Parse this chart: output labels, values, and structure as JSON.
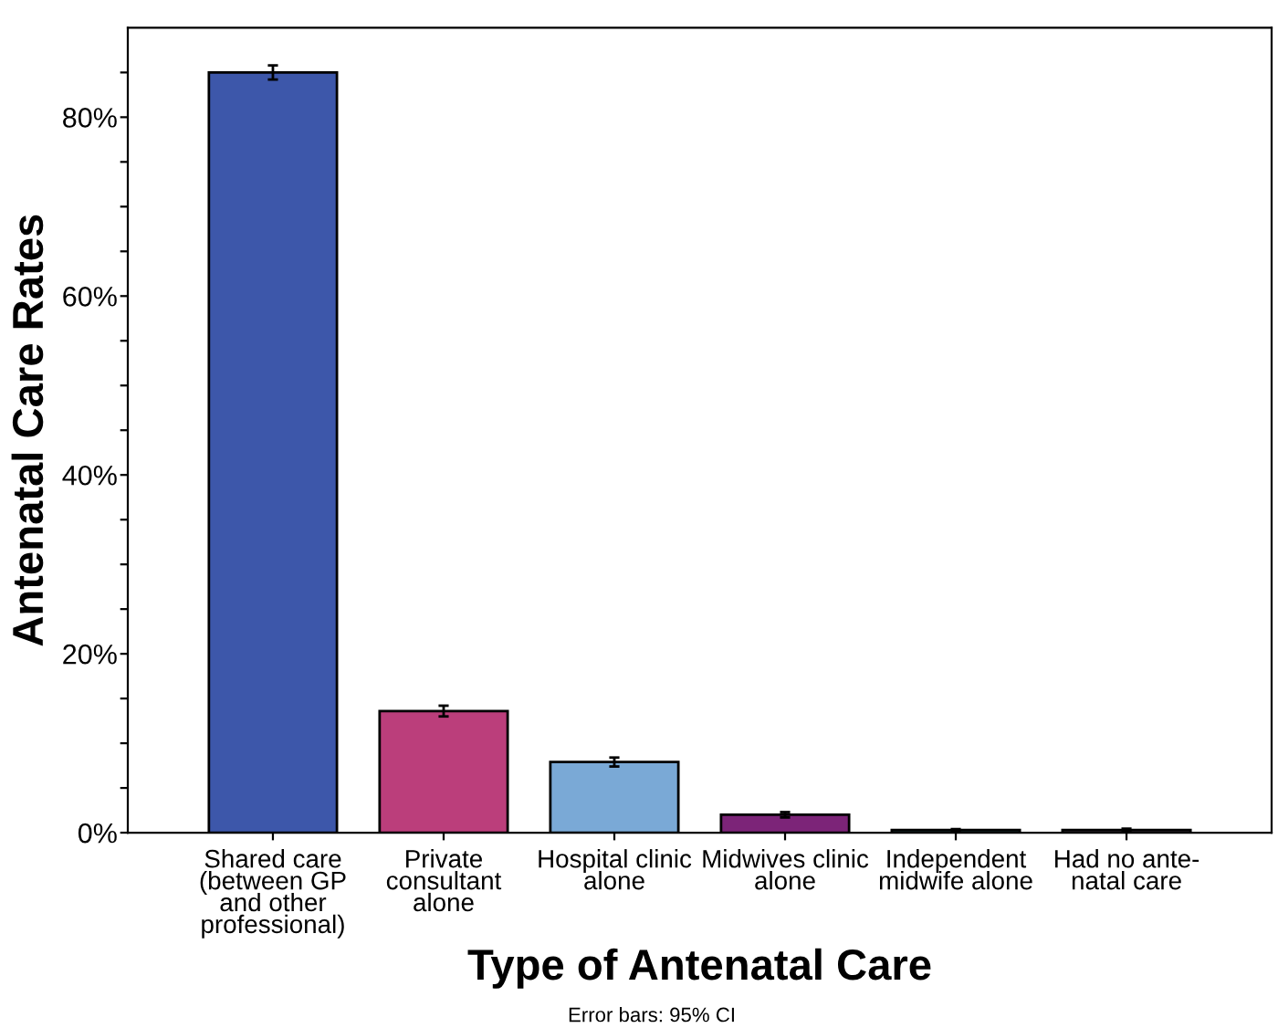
{
  "chart_data": {
    "type": "bar",
    "xlabel": "Type of Antenatal Care",
    "ylabel": "Antenatal Care Rates",
    "categories": [
      "Shared care\n(between GP\nand other\nprofessional)",
      "Private\nconsultant\nalone",
      "Hospital clinic\nalone",
      "Midwives clinic\nalone",
      "Independent\nmidwife alone",
      "Had no ante-\nnatal care"
    ],
    "values": [
      85.0,
      13.6,
      7.9,
      2.0,
      0.3,
      0.3
    ],
    "errors": [
      0.8,
      0.6,
      0.5,
      0.3,
      0.1,
      0.15
    ],
    "colors": [
      "#3d57aa",
      "#bb3e7b",
      "#7aa9d6",
      "#7c2478",
      "#2d5f5c",
      "#6b5a6b"
    ],
    "ylim": [
      0,
      90
    ],
    "yticks": [
      {
        "value": 0,
        "label": "0%"
      },
      {
        "value": 5,
        "label": null
      },
      {
        "value": 10,
        "label": null
      },
      {
        "value": 15,
        "label": null
      },
      {
        "value": 20,
        "label": "20%"
      },
      {
        "value": 25,
        "label": null
      },
      {
        "value": 30,
        "label": null
      },
      {
        "value": 35,
        "label": null
      },
      {
        "value": 40,
        "label": "40%"
      },
      {
        "value": 45,
        "label": null
      },
      {
        "value": 50,
        "label": null
      },
      {
        "value": 55,
        "label": null
      },
      {
        "value": 60,
        "label": "60%"
      },
      {
        "value": 65,
        "label": null
      },
      {
        "value": 70,
        "label": null
      },
      {
        "value": 75,
        "label": null
      },
      {
        "value": 80,
        "label": "80%"
      },
      {
        "value": 85,
        "label": null
      }
    ],
    "grid": false,
    "legend": false,
    "annotations": [
      "Error bars: 95% CI"
    ]
  }
}
